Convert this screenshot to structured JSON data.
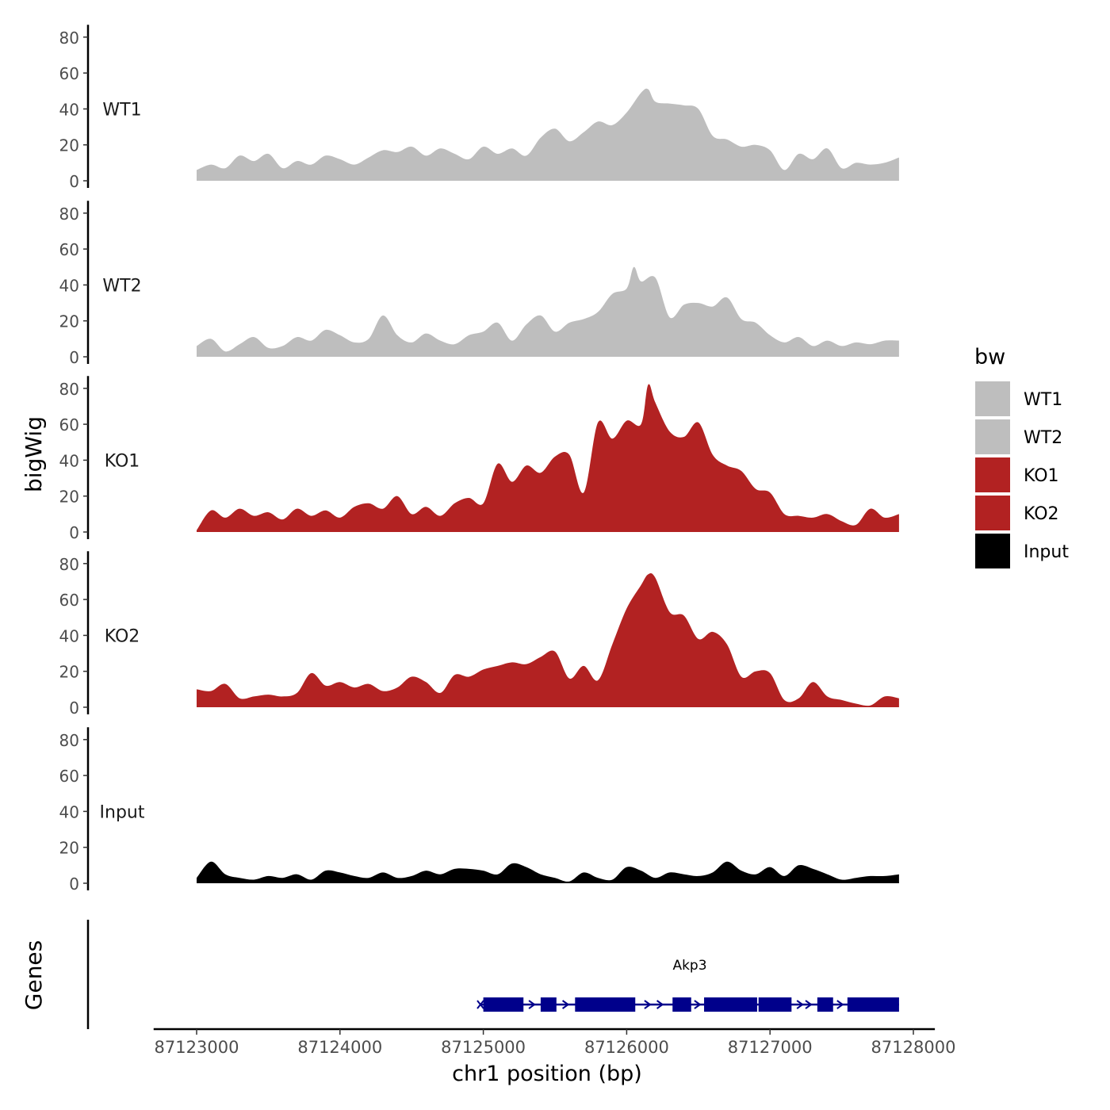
{
  "chart_data": {
    "type": "area",
    "subtype": "genome-track",
    "y_axis_label": "bigWig",
    "x_axis_label": "chr1 position (bp)",
    "x_range": [
      87122700,
      87128150
    ],
    "x_ticks": [
      {
        "value": 87123000,
        "label": "87123000"
      },
      {
        "value": 87124000,
        "label": "87124000"
      },
      {
        "value": 87125000,
        "label": "87125000"
      },
      {
        "value": 87126000,
        "label": "87126000"
      },
      {
        "value": 87127000,
        "label": "87127000"
      },
      {
        "value": 87128000,
        "label": "87128000"
      }
    ],
    "y_range": [
      0,
      85
    ],
    "y_ticks": [
      {
        "value": 0,
        "label": "0"
      },
      {
        "value": 20,
        "label": "20"
      },
      {
        "value": 40,
        "label": "40"
      },
      {
        "value": 60,
        "label": "60"
      },
      {
        "value": 80,
        "label": "80"
      }
    ],
    "legend": {
      "title": "bw",
      "position": "right",
      "entries": [
        {
          "label": "WT1",
          "color": "#bebebe"
        },
        {
          "label": "WT2",
          "color": "#bebebe"
        },
        {
          "label": "KO1",
          "color": "#b22222"
        },
        {
          "label": "KO2",
          "color": "#b22222"
        },
        {
          "label": "Input",
          "color": "#000000"
        }
      ]
    },
    "tracks": [
      {
        "name": "WT1",
        "color": "#bebebe",
        "x": [
          87123000,
          87123100,
          87123200,
          87123300,
          87123400,
          87123500,
          87123600,
          87123700,
          87123800,
          87123900,
          87124000,
          87124100,
          87124200,
          87124300,
          87124400,
          87124500,
          87124600,
          87124700,
          87124800,
          87124900,
          87125000,
          87125100,
          87125200,
          87125300,
          87125400,
          87125500,
          87125600,
          87125700,
          87125800,
          87125900,
          87126000,
          87126100,
          87126150,
          87126200,
          87126300,
          87126400,
          87126500,
          87126600,
          87126700,
          87126800,
          87126900,
          87127000,
          87127100,
          87127200,
          87127300,
          87127400,
          87127500,
          87127600,
          87127700,
          87127800,
          87127900
        ],
        "y": [
          6,
          9,
          7,
          14,
          11,
          15,
          7,
          11,
          9,
          14,
          12,
          9,
          13,
          17,
          16,
          19,
          14,
          18,
          15,
          12,
          19,
          15,
          18,
          14,
          24,
          29,
          22,
          27,
          33,
          31,
          38,
          49,
          51,
          44,
          43,
          42,
          40,
          25,
          23,
          19,
          20,
          17,
          6,
          15,
          12,
          18,
          7,
          10,
          9,
          10,
          13
        ]
      },
      {
        "name": "WT2",
        "color": "#bebebe",
        "x": [
          87123000,
          87123100,
          87123200,
          87123300,
          87123400,
          87123500,
          87123600,
          87123700,
          87123800,
          87123900,
          87124000,
          87124100,
          87124200,
          87124300,
          87124400,
          87124500,
          87124600,
          87124700,
          87124800,
          87124900,
          87125000,
          87125100,
          87125200,
          87125300,
          87125400,
          87125500,
          87125600,
          87125700,
          87125800,
          87125900,
          87126000,
          87126050,
          87126100,
          87126200,
          87126300,
          87126400,
          87126500,
          87126600,
          87126700,
          87126800,
          87126900,
          87127000,
          87127100,
          87127200,
          87127300,
          87127400,
          87127500,
          87127600,
          87127700,
          87127800,
          87127900
        ],
        "y": [
          6,
          10,
          3,
          7,
          11,
          5,
          6,
          11,
          9,
          15,
          12,
          8,
          10,
          23,
          12,
          8,
          13,
          9,
          7,
          12,
          14,
          19,
          9,
          18,
          23,
          14,
          19,
          21,
          25,
          35,
          38,
          50,
          42,
          44,
          22,
          29,
          30,
          28,
          33,
          21,
          19,
          12,
          8,
          11,
          6,
          9,
          6,
          8,
          7,
          9,
          9
        ]
      },
      {
        "name": "KO1",
        "color": "#b22222",
        "x": [
          87123000,
          87123100,
          87123200,
          87123300,
          87123400,
          87123500,
          87123600,
          87123700,
          87123800,
          87123900,
          87124000,
          87124100,
          87124200,
          87124300,
          87124400,
          87124500,
          87124600,
          87124700,
          87124800,
          87124900,
          87125000,
          87125100,
          87125200,
          87125300,
          87125400,
          87125500,
          87125600,
          87125700,
          87125800,
          87125900,
          87126000,
          87126100,
          87126150,
          87126200,
          87126300,
          87126400,
          87126500,
          87126600,
          87126700,
          87126800,
          87126900,
          87127000,
          87127100,
          87127200,
          87127300,
          87127400,
          87127500,
          87127600,
          87127700,
          87127800,
          87127900
        ],
        "y": [
          1,
          12,
          8,
          13,
          9,
          11,
          7,
          13,
          9,
          12,
          8,
          14,
          16,
          13,
          20,
          10,
          14,
          9,
          16,
          19,
          16,
          38,
          28,
          37,
          33,
          42,
          43,
          22,
          61,
          52,
          62,
          60,
          82,
          72,
          56,
          53,
          61,
          43,
          37,
          34,
          24,
          22,
          10,
          9,
          8,
          10,
          6,
          4,
          13,
          8,
          10
        ]
      },
      {
        "name": "KO2",
        "color": "#b22222",
        "x": [
          87123000,
          87123100,
          87123200,
          87123300,
          87123400,
          87123500,
          87123600,
          87123700,
          87123800,
          87123900,
          87124000,
          87124100,
          87124200,
          87124300,
          87124400,
          87124500,
          87124600,
          87124700,
          87124800,
          87124900,
          87125000,
          87125100,
          87125200,
          87125300,
          87125400,
          87125500,
          87125600,
          87125700,
          87125800,
          87125900,
          87126000,
          87126100,
          87126150,
          87126200,
          87126300,
          87126400,
          87126500,
          87126600,
          87126700,
          87126800,
          87126900,
          87127000,
          87127100,
          87127200,
          87127300,
          87127400,
          87127500,
          87127600,
          87127700,
          87127800,
          87127900
        ],
        "y": [
          10,
          9,
          13,
          5,
          6,
          7,
          6,
          8,
          19,
          12,
          14,
          11,
          13,
          9,
          11,
          17,
          14,
          8,
          18,
          17,
          21,
          23,
          25,
          24,
          28,
          31,
          16,
          23,
          15,
          35,
          55,
          68,
          74,
          72,
          53,
          51,
          38,
          42,
          35,
          17,
          20,
          19,
          4,
          5,
          14,
          6,
          4,
          2,
          1,
          6,
          5
        ]
      },
      {
        "name": "Input",
        "color": "#000000",
        "x": [
          87123000,
          87123100,
          87123200,
          87123300,
          87123400,
          87123500,
          87123600,
          87123700,
          87123800,
          87123900,
          87124000,
          87124100,
          87124200,
          87124300,
          87124400,
          87124500,
          87124600,
          87124700,
          87124800,
          87124900,
          87125000,
          87125100,
          87125200,
          87125300,
          87125400,
          87125500,
          87125600,
          87125700,
          87125800,
          87125900,
          87126000,
          87126100,
          87126200,
          87126300,
          87126400,
          87126500,
          87126600,
          87126700,
          87126800,
          87126900,
          87127000,
          87127100,
          87127200,
          87127300,
          87127400,
          87127500,
          87127600,
          87127700,
          87127800,
          87127900
        ],
        "y": [
          3,
          12,
          5,
          3,
          2,
          4,
          3,
          5,
          2,
          7,
          6,
          4,
          3,
          6,
          3,
          4,
          7,
          5,
          8,
          8,
          7,
          5,
          11,
          9,
          5,
          3,
          1,
          6,
          3,
          2,
          9,
          7,
          3,
          6,
          5,
          4,
          6,
          12,
          7,
          5,
          9,
          4,
          10,
          8,
          5,
          2,
          3,
          4,
          4,
          5
        ]
      }
    ],
    "genes": {
      "label": "Genes",
      "color": "#00008b",
      "items": [
        {
          "name": "Akp3",
          "start": 87124980,
          "end": 87127900,
          "strand": "+",
          "exons": [
            [
              87125000,
              87125280
            ],
            [
              87125400,
              87125510
            ],
            [
              87125640,
              87126060
            ],
            [
              87126320,
              87126450
            ],
            [
              87126540,
              87126910
            ],
            [
              87126920,
              87127150
            ],
            [
              87127330,
              87127440
            ],
            [
              87127540,
              87127900
            ]
          ]
        }
      ]
    }
  }
}
